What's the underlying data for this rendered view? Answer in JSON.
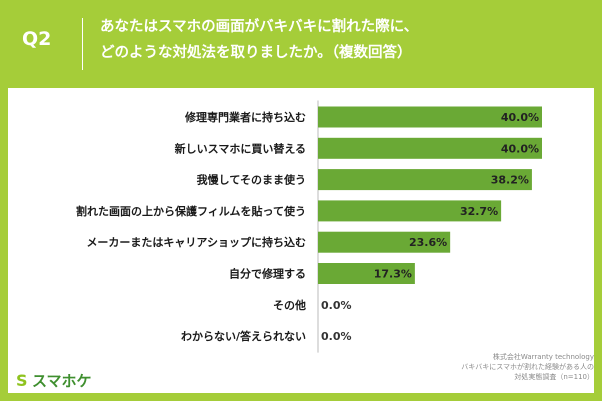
{
  "header": {
    "q_label": "Q2",
    "title_line1": "あなたはスマホの画面がバキバキに割れた際に、",
    "title_line2": "どのような対処法を取りましたか。（複数回答）"
  },
  "colors": {
    "background": "#a5cd39",
    "bar": "#6aa935",
    "bar_label": "#222222",
    "category_label": "#1a1a1a",
    "zero_label": "#333333",
    "axis_line": "#bbbbbb"
  },
  "chart_data": {
    "type": "bar",
    "orientation": "horizontal",
    "categories": [
      "修理専門業者に持ち込む",
      "新しいスマホに買い替える",
      "我慢してそのまま使う",
      "割れた画面の上から保護フィルムを貼って使う",
      "メーカーまたはキャリアショップに持ち込む",
      "自分で修理する",
      "その他",
      "わからない/答えられない"
    ],
    "values": [
      40.0,
      40.0,
      38.2,
      32.7,
      23.6,
      17.3,
      0.0,
      0.0
    ],
    "value_labels": [
      "40.0%",
      "40.0%",
      "38.2%",
      "32.7%",
      "23.6%",
      "17.3%",
      "0.0%",
      "0.0%"
    ],
    "xlim": [
      0,
      40
    ],
    "grid": false,
    "legend": "none"
  },
  "source": {
    "line1": "株式会社Warranty technology",
    "line2": "バキバキにスマホが割れた経験がある人の",
    "line3": "対処実態調査（n=110）"
  },
  "logo": {
    "mark": "S",
    "text": "スマホケ",
    "icon": "logo-mark-icon"
  }
}
